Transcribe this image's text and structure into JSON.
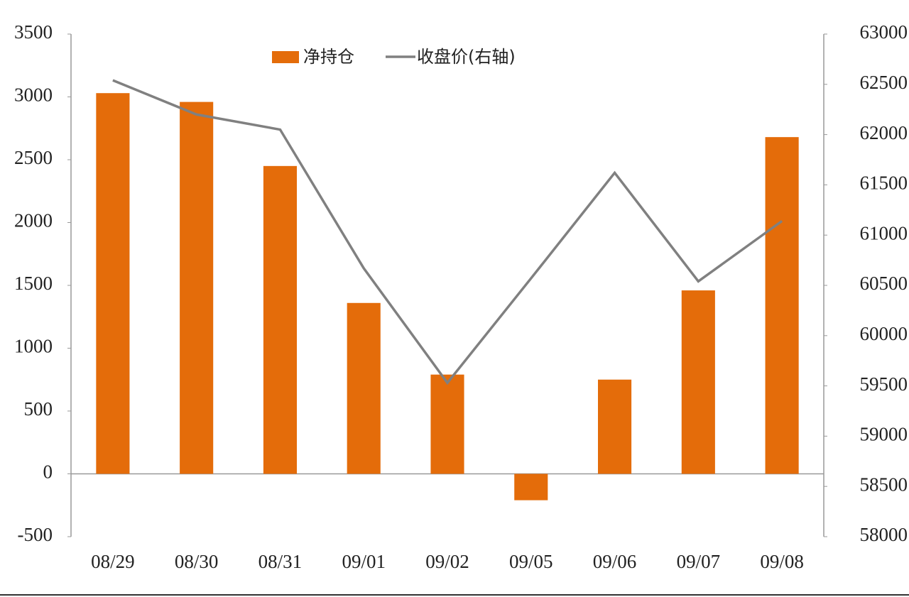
{
  "chart_data": {
    "type": "bar",
    "categories": [
      "08/29",
      "08/30",
      "08/31",
      "09/01",
      "09/02",
      "09/05",
      "09/06",
      "09/07",
      "09/08"
    ],
    "series": [
      {
        "name": "净持仓",
        "color": "#e46c0a",
        "values": [
          3030,
          2960,
          2450,
          1360,
          790,
          -210,
          750,
          1460,
          2680
        ]
      },
      {
        "name": "收盘价(右轴)",
        "type": "line",
        "axis": "y2",
        "color": "#808080",
        "values": [
          62540,
          62200,
          62050,
          60670,
          59530,
          60570,
          61620,
          60540,
          61140
        ]
      }
    ],
    "ylim": [
      -500,
      3500
    ],
    "yticks": [
      -500,
      0,
      500,
      1000,
      1500,
      2000,
      2500,
      3000,
      3500
    ],
    "y2lim": [
      58000,
      63000
    ],
    "y2ticks": [
      58000,
      58500,
      59000,
      59500,
      60000,
      60500,
      61000,
      61500,
      62000,
      62500,
      63000
    ],
    "legend": "top"
  }
}
